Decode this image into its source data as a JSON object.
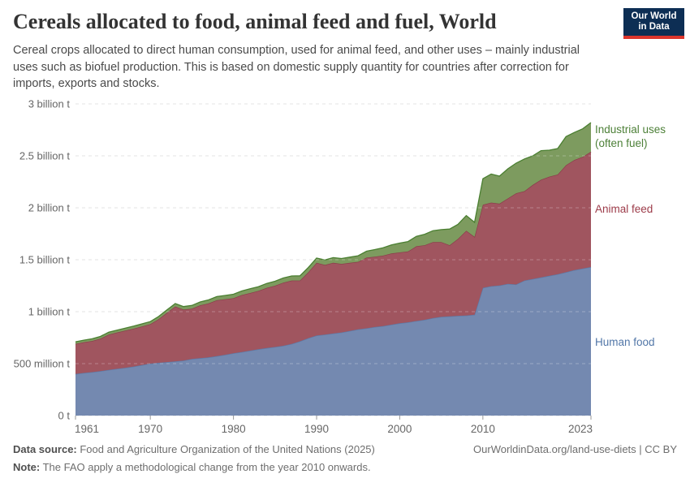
{
  "header": {
    "title": "Cereals allocated to food, animal feed and fuel, World",
    "subtitle": "Cereal crops allocated to direct human consumption, used for animal feed, and other uses – mainly industrial uses such as biofuel production. This is based on domestic supply quantity for countries after correction for imports, exports and stocks."
  },
  "logo": {
    "line1": "Our World",
    "line2": "in Data",
    "bg_color": "#0d2e54",
    "bar_color": "#dc352c"
  },
  "chart_data": {
    "type": "area",
    "stacked": true,
    "title": "Cereals allocated to food, animal feed and fuel, World",
    "xlabel": "",
    "ylabel": "",
    "unit": "tonnes",
    "ylim_billion_t": [
      0,
      3
    ],
    "grid": "dashed",
    "legend_position": "right-of-plot",
    "y_ticks": [
      {
        "value": 0,
        "label": "0 t"
      },
      {
        "value": 0.5,
        "label": "500 million t"
      },
      {
        "value": 1,
        "label": "1 billion t"
      },
      {
        "value": 1.5,
        "label": "1.5 billion t"
      },
      {
        "value": 2,
        "label": "2 billion t"
      },
      {
        "value": 2.5,
        "label": "2.5 billion t"
      },
      {
        "value": 3,
        "label": "3 billion t"
      }
    ],
    "x_ticks": [
      1961,
      1970,
      1980,
      1990,
      2000,
      2010,
      2023
    ],
    "years": [
      1961,
      1962,
      1963,
      1964,
      1965,
      1966,
      1967,
      1968,
      1969,
      1970,
      1971,
      1972,
      1973,
      1974,
      1975,
      1976,
      1977,
      1978,
      1979,
      1980,
      1981,
      1982,
      1983,
      1984,
      1985,
      1986,
      1987,
      1988,
      1989,
      1990,
      1991,
      1992,
      1993,
      1994,
      1995,
      1996,
      1997,
      1998,
      1999,
      2000,
      2001,
      2002,
      2003,
      2004,
      2005,
      2006,
      2007,
      2008,
      2009,
      2010,
      2011,
      2012,
      2013,
      2014,
      2015,
      2016,
      2017,
      2018,
      2019,
      2020,
      2021,
      2022,
      2023
    ],
    "series": [
      {
        "name": "Human food",
        "label": "Human food",
        "fill": "#7489b0",
        "line": "#5b7aa8",
        "label_color": "#5277a8",
        "values_billion_t": [
          0.4,
          0.41,
          0.418,
          0.428,
          0.44,
          0.45,
          0.46,
          0.472,
          0.486,
          0.5,
          0.508,
          0.515,
          0.522,
          0.53,
          0.545,
          0.552,
          0.56,
          0.572,
          0.585,
          0.6,
          0.612,
          0.625,
          0.638,
          0.65,
          0.66,
          0.672,
          0.69,
          0.715,
          0.745,
          0.77,
          0.78,
          0.79,
          0.8,
          0.815,
          0.83,
          0.84,
          0.852,
          0.862,
          0.875,
          0.888,
          0.898,
          0.91,
          0.922,
          0.938,
          0.95,
          0.955,
          0.96,
          0.963,
          0.97,
          1.23,
          1.245,
          1.252,
          1.268,
          1.262,
          1.3,
          1.315,
          1.33,
          1.345,
          1.36,
          1.38,
          1.4,
          1.415,
          1.43
        ]
      },
      {
        "name": "Animal feed",
        "label": "Animal feed",
        "fill": "#a0555f",
        "line": "#8a3b49",
        "label_color": "#9c3b49",
        "values_billion_t": [
          0.29,
          0.296,
          0.3,
          0.312,
          0.34,
          0.35,
          0.358,
          0.365,
          0.372,
          0.38,
          0.42,
          0.475,
          0.528,
          0.49,
          0.485,
          0.51,
          0.52,
          0.538,
          0.535,
          0.53,
          0.548,
          0.555,
          0.562,
          0.58,
          0.59,
          0.608,
          0.61,
          0.585,
          0.635,
          0.7,
          0.67,
          0.68,
          0.66,
          0.655,
          0.65,
          0.68,
          0.678,
          0.678,
          0.685,
          0.682,
          0.682,
          0.72,
          0.718,
          0.732,
          0.72,
          0.685,
          0.74,
          0.817,
          0.75,
          0.8,
          0.805,
          0.788,
          0.822,
          0.878,
          0.86,
          0.905,
          0.94,
          0.955,
          0.96,
          1.03,
          1.06,
          1.075,
          1.11
        ]
      },
      {
        "name": "Industrial uses (often fuel)",
        "label": "Industrial uses (often fuel)",
        "fill": "#7d9b5f",
        "line": "#4a7f31",
        "label_color": "#4d8038",
        "values_billion_t": [
          0.02,
          0.02,
          0.021,
          0.022,
          0.023,
          0.023,
          0.024,
          0.024,
          0.025,
          0.025,
          0.026,
          0.027,
          0.028,
          0.029,
          0.03,
          0.032,
          0.033,
          0.035,
          0.036,
          0.038,
          0.039,
          0.04,
          0.041,
          0.042,
          0.043,
          0.044,
          0.044,
          0.045,
          0.045,
          0.046,
          0.048,
          0.05,
          0.052,
          0.055,
          0.058,
          0.062,
          0.068,
          0.075,
          0.082,
          0.09,
          0.095,
          0.095,
          0.105,
          0.11,
          0.12,
          0.155,
          0.14,
          0.145,
          0.14,
          0.25,
          0.275,
          0.265,
          0.285,
          0.29,
          0.31,
          0.28,
          0.28,
          0.255,
          0.25,
          0.275,
          0.265,
          0.27,
          0.28
        ]
      }
    ],
    "annotation": "Methodological step change visible at year 2010"
  },
  "footer": {
    "datasource_label": "Data source:",
    "datasource_text": " Food and Agriculture Organization of the United Nations (2025)",
    "note_label": "Note:",
    "note_text": " The FAO apply a methodological change from the year 2010 onwards.",
    "link": "OurWorldinData.org/land-use-diets | CC BY"
  }
}
